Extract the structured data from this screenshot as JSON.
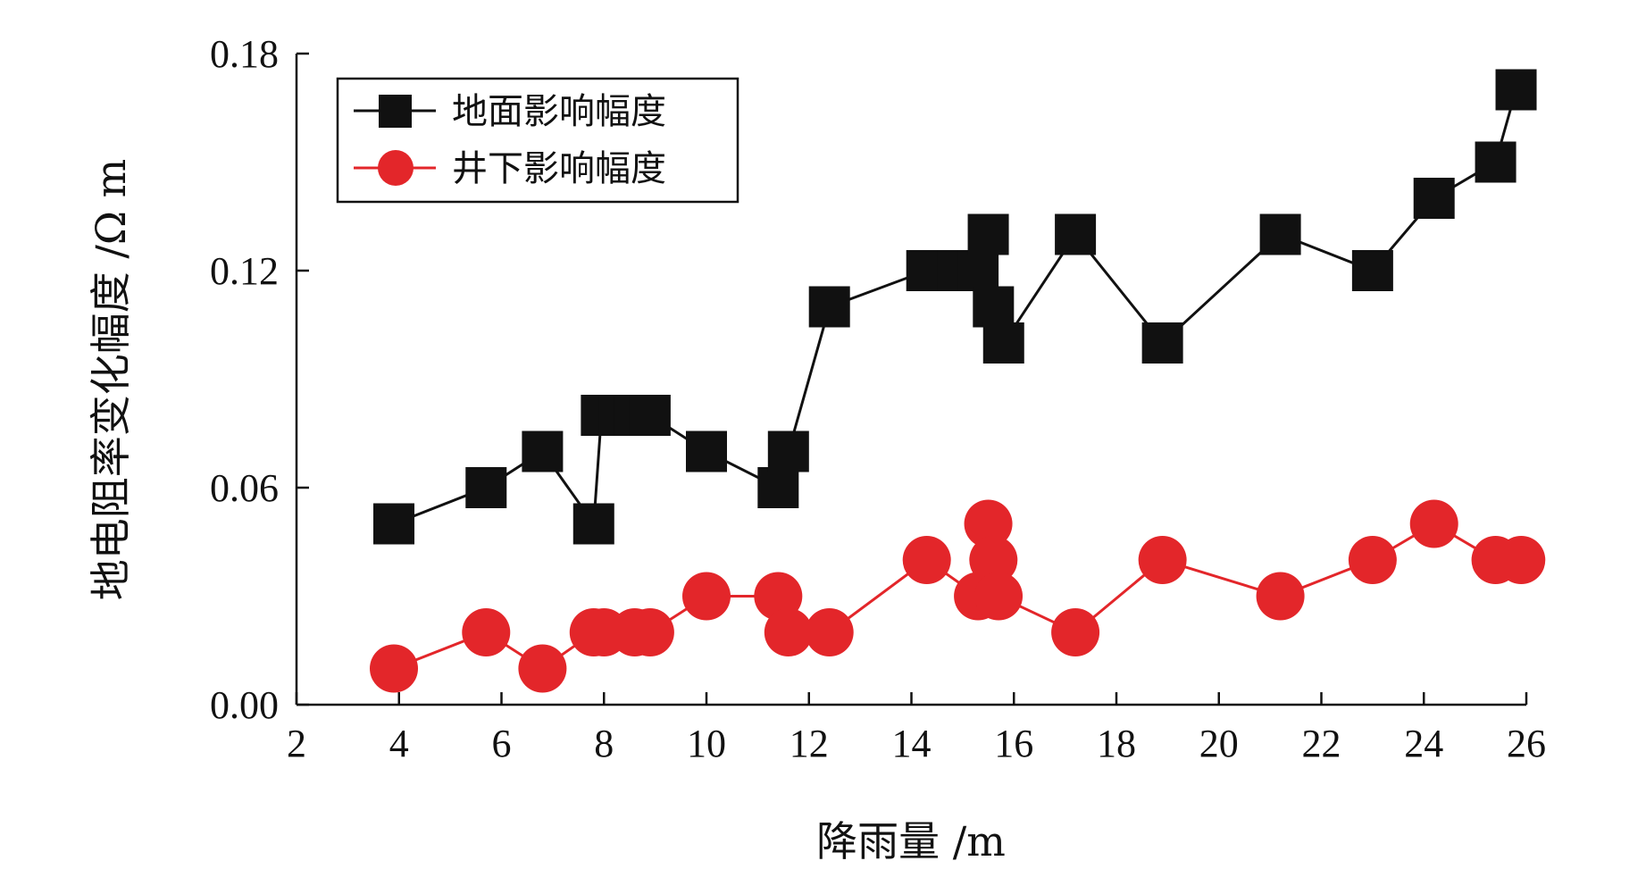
{
  "chart_data": {
    "type": "line",
    "title": "",
    "xlabel": "降雨量 /m",
    "ylabel": "地电阻率变化幅度 /Ω m",
    "xlim": [
      2,
      26
    ],
    "ylim": [
      0,
      0.18
    ],
    "xticks": [
      "2",
      "4",
      "6",
      "8",
      "10",
      "12",
      "14",
      "16",
      "18",
      "20",
      "22",
      "24",
      "26"
    ],
    "yticks": [
      "0.00",
      "0.06",
      "0.12",
      "0.18"
    ],
    "grid": false,
    "legend_position": "top-left",
    "series": [
      {
        "name": "地面影响幅度",
        "color": "#111111",
        "marker": "square",
        "x": [
          3.9,
          5.7,
          6.8,
          7.8,
          7.95,
          8.3,
          8.6,
          8.9,
          10.0,
          11.4,
          11.6,
          12.4,
          14.3,
          14.9,
          15.3,
          15.5,
          15.6,
          15.8,
          17.2,
          18.9,
          21.2,
          23.0,
          24.2,
          25.4,
          25.8
        ],
        "values": [
          0.05,
          0.06,
          0.07,
          0.05,
          0.08,
          0.08,
          0.08,
          0.08,
          0.07,
          0.06,
          0.07,
          0.11,
          0.12,
          0.12,
          0.12,
          0.13,
          0.11,
          0.1,
          0.13,
          0.1,
          0.13,
          0.12,
          0.14,
          0.15,
          0.17
        ]
      },
      {
        "name": "井下影响幅度",
        "color": "#e3262a",
        "marker": "circle",
        "x": [
          3.9,
          5.7,
          6.8,
          7.8,
          8.0,
          8.6,
          8.9,
          10.0,
          11.4,
          11.6,
          12.4,
          14.3,
          15.3,
          15.5,
          15.6,
          15.7,
          17.2,
          18.9,
          21.2,
          23.0,
          24.2,
          25.4,
          25.9
        ],
        "values": [
          0.01,
          0.02,
          0.01,
          0.02,
          0.02,
          0.02,
          0.02,
          0.03,
          0.03,
          0.02,
          0.02,
          0.04,
          0.03,
          0.05,
          0.04,
          0.03,
          0.02,
          0.04,
          0.03,
          0.04,
          0.05,
          0.04,
          0.04
        ]
      }
    ]
  }
}
